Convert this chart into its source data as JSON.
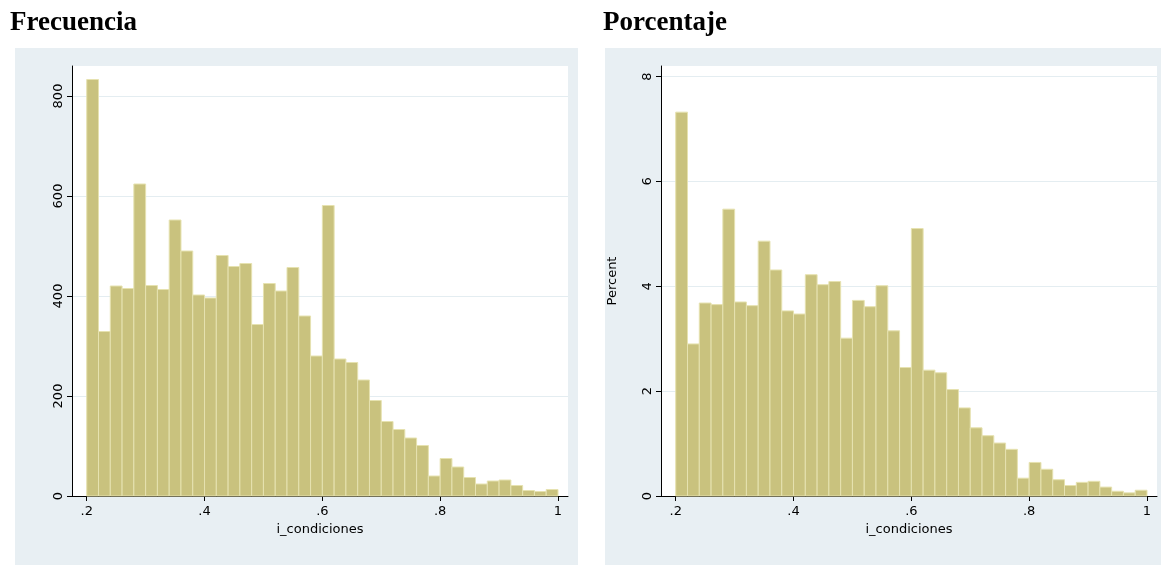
{
  "chart_data": [
    {
      "type": "histogram",
      "title": "Frecuencia",
      "xlabel": "i_condiciones",
      "color": "#c9c27e",
      "grid": "y",
      "bins": [
        0.2,
        0.22,
        0.24,
        0.26,
        0.28,
        0.3,
        0.32,
        0.34,
        0.36,
        0.38,
        0.4,
        0.42,
        0.44,
        0.46,
        0.48,
        0.5,
        0.52,
        0.54,
        0.56,
        0.58,
        0.6,
        0.62,
        0.64,
        0.66,
        0.68,
        0.7,
        0.72,
        0.74,
        0.76,
        0.78,
        0.8,
        0.82,
        0.84,
        0.86,
        0.88,
        0.9,
        0.92,
        0.94,
        0.96,
        0.98,
        1.0
      ],
      "values": [
        833,
        329,
        420,
        415,
        624,
        421,
        413,
        552,
        490,
        402,
        396,
        481,
        459,
        465,
        343,
        425,
        410,
        457,
        360,
        280,
        581,
        274,
        267,
        232,
        191,
        149,
        133,
        116,
        101,
        40,
        75,
        58,
        37,
        24,
        30,
        32,
        21,
        11,
        9,
        13
      ],
      "xlim": [
        0.175,
        1.017
      ],
      "ylim": [
        0,
        860
      ],
      "xticks": [
        {
          "value": 0.2,
          "label": ".2"
        },
        {
          "value": 0.4,
          "label": ".4"
        },
        {
          "value": 0.6,
          "label": ".6"
        },
        {
          "value": 0.8,
          "label": ".8"
        },
        1
      ],
      "yticks": [
        0,
        200,
        400,
        600,
        800
      ]
    },
    {
      "type": "histogram",
      "title": "Porcentaje",
      "xlabel": "i_condiciones",
      "ylabel": "Percent",
      "color": "#c9c27e",
      "grid": "y",
      "bins": [
        0.2,
        0.22,
        0.24,
        0.26,
        0.28,
        0.3,
        0.32,
        0.34,
        0.36,
        0.38,
        0.4,
        0.42,
        0.44,
        0.46,
        0.48,
        0.5,
        0.52,
        0.54,
        0.56,
        0.58,
        0.6,
        0.62,
        0.64,
        0.66,
        0.68,
        0.7,
        0.72,
        0.74,
        0.76,
        0.78,
        0.8,
        0.82,
        0.84,
        0.86,
        0.88,
        0.9,
        0.92,
        0.94,
        0.96,
        0.98,
        1.0
      ],
      "values": [
        7.32,
        2.9,
        3.68,
        3.65,
        5.47,
        3.7,
        3.63,
        4.86,
        4.31,
        3.53,
        3.47,
        4.22,
        4.03,
        4.09,
        3.01,
        3.73,
        3.61,
        4.01,
        3.15,
        2.45,
        5.1,
        2.4,
        2.35,
        2.03,
        1.68,
        1.3,
        1.15,
        1.01,
        0.89,
        0.34,
        0.64,
        0.51,
        0.31,
        0.2,
        0.26,
        0.28,
        0.17,
        0.09,
        0.06,
        0.11
      ],
      "xlim": [
        0.175,
        1.017
      ],
      "ylim": [
        0,
        8.2
      ],
      "xticks": [
        {
          "value": 0.2,
          "label": ".2"
        },
        {
          "value": 0.4,
          "label": ".4"
        },
        {
          "value": 0.6,
          "label": ".6"
        },
        {
          "value": 0.8,
          "label": ".8"
        },
        1
      ],
      "yticks": [
        0,
        2,
        4,
        6,
        8
      ]
    }
  ]
}
